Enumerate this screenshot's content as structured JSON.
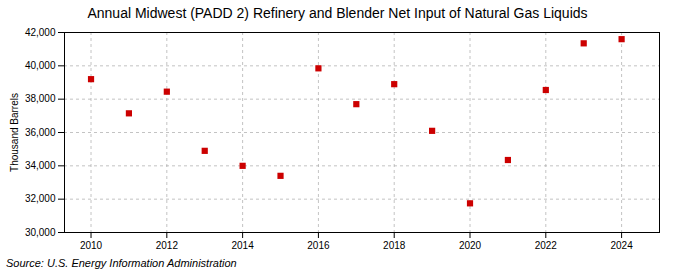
{
  "chart_data": {
    "type": "scatter",
    "title": "Annual Midwest (PADD 2) Refinery and Blender Net Input of Natural Gas Liquids",
    "ylabel": "Thousand Barrels",
    "annotations": [
      "Source: U.S. Energy Information Administration"
    ],
    "x": [
      2010,
      2011,
      2012,
      2013,
      2014,
      2015,
      2016,
      2017,
      2018,
      2019,
      2020,
      2021,
      2022,
      2023,
      2024
    ],
    "values": [
      39200,
      37150,
      38450,
      34900,
      34000,
      33400,
      39850,
      37700,
      38900,
      36100,
      31750,
      34350,
      38550,
      41350,
      41600
    ],
    "color": "#cc0000",
    "marker": "square",
    "grid": true,
    "xlim": [
      2009.3,
      2025.0
    ],
    "xticks": [
      2010,
      2012,
      2014,
      2016,
      2018,
      2020,
      2022,
      2024
    ],
    "ylim": [
      30000,
      42000
    ],
    "yticks": [
      {
        "value": 30000,
        "label": "30,000"
      },
      {
        "value": 32000,
        "label": "32,000"
      },
      {
        "value": 34000,
        "label": "34,000"
      },
      {
        "value": 36000,
        "label": "36,000"
      },
      {
        "value": 38000,
        "label": "38,000"
      },
      {
        "value": 40000,
        "label": "40,000"
      },
      {
        "value": 42000,
        "label": "42,000"
      }
    ]
  }
}
